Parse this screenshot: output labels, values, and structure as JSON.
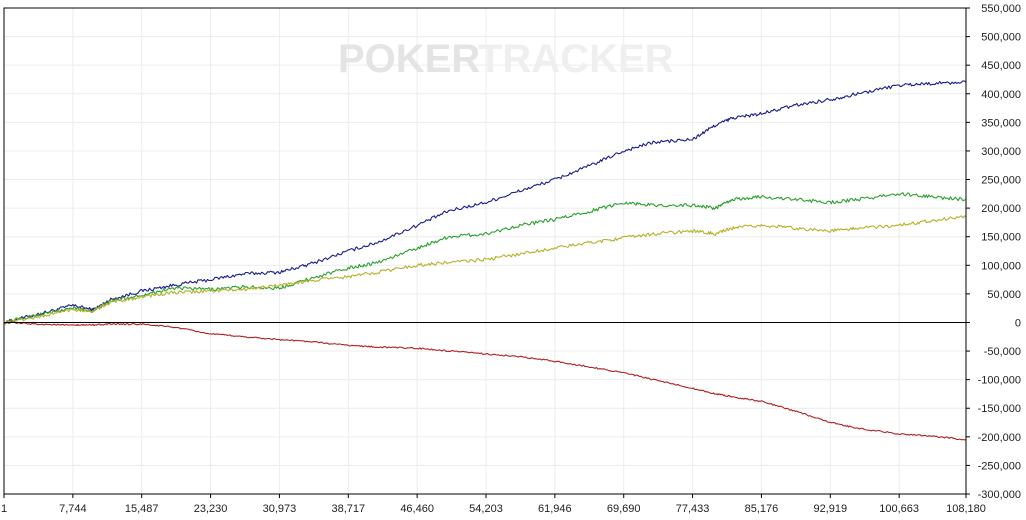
{
  "watermark": {
    "left": "POKER",
    "right": "TRACKER"
  },
  "chart_data": {
    "type": "line",
    "x_ticks": [
      "1",
      "7,744",
      "15,487",
      "23,230",
      "30,973",
      "38,717",
      "46,460",
      "54,203",
      "61,946",
      "69,690",
      "77,433",
      "85,176",
      "92,919",
      "100,663",
      "108,180"
    ],
    "y_ticks": [
      "550,000",
      "500,000",
      "450,000",
      "400,000",
      "350,000",
      "300,000",
      "250,000",
      "200,000",
      "150,000",
      "100,000",
      "50,000",
      "0",
      "-50,000",
      "-100,000",
      "-150,000",
      "-200,000",
      "-250,000",
      "-300,000"
    ],
    "xlim": [
      1,
      108180
    ],
    "ylim": [
      -300000,
      550000
    ],
    "grid": true,
    "x": [
      1,
      4000,
      7744,
      10000,
      12000,
      15487,
      19000,
      23230,
      27000,
      30973,
      34000,
      38717,
      42000,
      46460,
      50000,
      54203,
      58000,
      61946,
      66000,
      69690,
      73000,
      77433,
      80000,
      82000,
      85176,
      89000,
      92919,
      96000,
      100663,
      104000,
      108180
    ],
    "series": [
      {
        "color": "#1c1c8c",
        "values": [
          0,
          15000,
          30000,
          22000,
          40000,
          55000,
          65000,
          75000,
          85000,
          88000,
          100000,
          125000,
          140000,
          170000,
          195000,
          210000,
          230000,
          250000,
          275000,
          300000,
          315000,
          320000,
          345000,
          358000,
          365000,
          380000,
          390000,
          400000,
          415000,
          418000,
          420000
        ]
      },
      {
        "color": "#2ca02c",
        "values": [
          0,
          14000,
          25000,
          20000,
          38000,
          48000,
          60000,
          58000,
          62000,
          60000,
          75000,
          95000,
          105000,
          130000,
          150000,
          155000,
          170000,
          180000,
          195000,
          210000,
          205000,
          205000,
          200000,
          215000,
          220000,
          215000,
          210000,
          215000,
          225000,
          220000,
          215000
        ]
      },
      {
        "color": "#b5b22a",
        "values": [
          0,
          10000,
          23000,
          20000,
          35000,
          45000,
          52000,
          55000,
          58000,
          65000,
          72000,
          80000,
          88000,
          100000,
          105000,
          110000,
          120000,
          130000,
          140000,
          148000,
          155000,
          160000,
          155000,
          165000,
          170000,
          165000,
          160000,
          165000,
          170000,
          178000,
          185000
        ]
      },
      {
        "color": "#b22222",
        "values": [
          0,
          -3000,
          -5000,
          -4000,
          -3000,
          -3000,
          -8000,
          -20000,
          -25000,
          -30000,
          -33000,
          -40000,
          -43000,
          -45000,
          -50000,
          -55000,
          -60000,
          -68000,
          -78000,
          -88000,
          -100000,
          -115000,
          -125000,
          -130000,
          -138000,
          -155000,
          -175000,
          -185000,
          -195000,
          -198000,
          -205000
        ]
      }
    ]
  }
}
